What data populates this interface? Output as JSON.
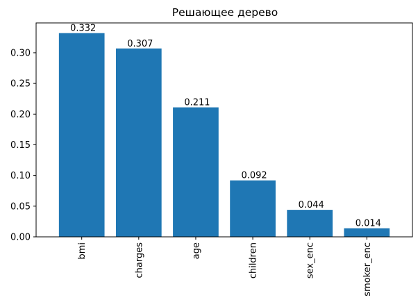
{
  "chart_data": {
    "type": "bar",
    "title": "Решающее дерево",
    "xlabel": "",
    "ylabel": "",
    "categories": [
      "bmi",
      "charges",
      "age",
      "children",
      "sex_enc",
      "smoker_enc"
    ],
    "values": [
      0.332,
      0.307,
      0.211,
      0.092,
      0.044,
      0.014
    ],
    "value_labels": [
      "0.332",
      "0.307",
      "0.211",
      "0.092",
      "0.044",
      "0.014"
    ],
    "ylim": [
      0,
      0.3486
    ],
    "yticks": [
      0.0,
      0.05,
      0.1,
      0.15,
      0.2,
      0.25,
      0.3
    ],
    "ytick_labels": [
      "0.00",
      "0.05",
      "0.10",
      "0.15",
      "0.20",
      "0.25",
      "0.30"
    ],
    "bar_color": "#1f77b4",
    "grid": false,
    "legend": "none"
  }
}
